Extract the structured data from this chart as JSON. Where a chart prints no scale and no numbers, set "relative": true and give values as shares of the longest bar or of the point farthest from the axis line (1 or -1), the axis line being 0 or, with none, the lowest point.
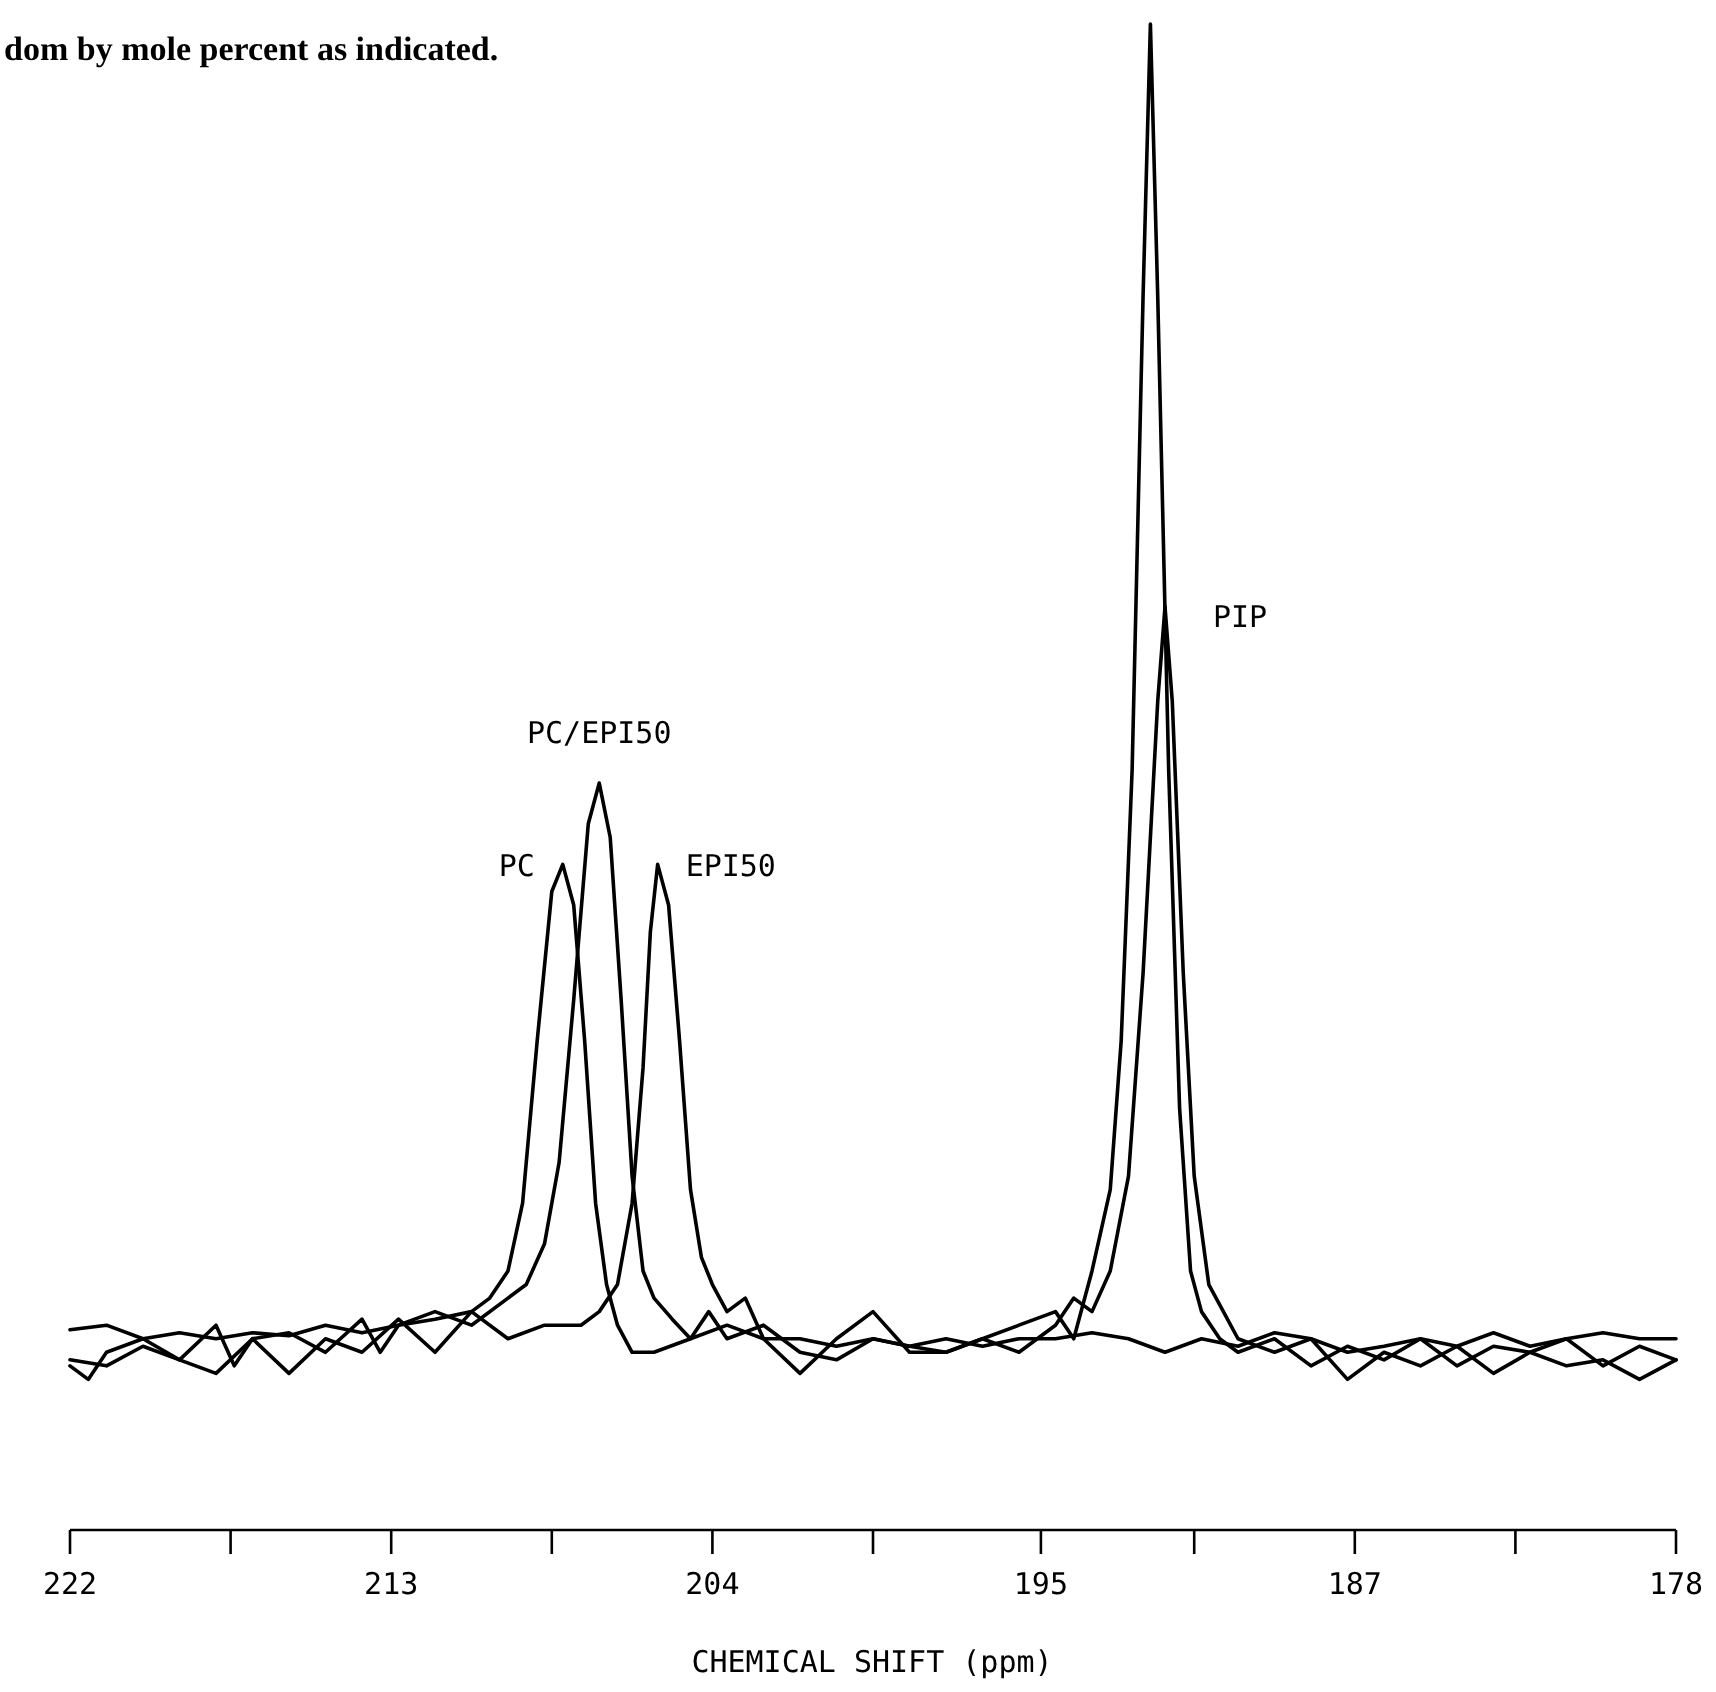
{
  "chart_data": {
    "type": "line",
    "relative": true,
    "xlabel": "CHEMICAL SHIFT (ppm)",
    "annotations": [
      "dom by mole percent as indicated.",
      {
        "text": "PIP",
        "x": 192,
        "y": 0.613
      }
    ],
    "xlim": [
      222,
      178
    ],
    "xticks": [
      222,
      {
        "value": 217.6,
        "label": null
      },
      {
        "value": 213.2,
        "label": "213"
      },
      {
        "value": 208.8,
        "label": null
      },
      {
        "value": 204.4,
        "label": "204"
      },
      {
        "value": 200,
        "label": null
      },
      {
        "value": 195.4,
        "label": "195"
      },
      {
        "value": 191.2,
        "label": null
      },
      {
        "value": 186.8,
        "label": "187"
      },
      {
        "value": 182.4,
        "label": null
      },
      178
    ],
    "marker": "none",
    "line_style": "solid",
    "series": [
      {
        "name": "PC",
        "color": "#000000",
        "x": [
          222,
          221,
          220,
          219,
          218,
          217,
          216,
          215,
          214,
          213,
          212,
          211,
          210.5,
          210,
          209.6,
          209.2,
          208.8,
          208.5,
          208.2,
          207.9,
          207.6,
          207.3,
          207,
          206.6,
          206,
          205,
          204,
          203,
          202,
          201,
          200,
          199,
          198,
          197,
          196,
          195,
          194,
          193,
          192,
          191,
          190,
          189,
          188,
          187,
          186,
          185,
          184,
          183,
          182,
          181,
          180,
          179,
          178
        ],
        "values": [
          0.133,
          0.136,
          0.127,
          0.131,
          0.127,
          0.131,
          0.129,
          0.136,
          0.131,
          0.136,
          0.14,
          0.145,
          0.154,
          0.172,
          0.217,
          0.325,
          0.424,
          0.442,
          0.415,
          0.325,
          0.217,
          0.163,
          0.136,
          0.118,
          0.118,
          0.127,
          0.136,
          0.127,
          0.127,
          0.122,
          0.127,
          0.122,
          0.127,
          0.122,
          0.127,
          0.127,
          0.131,
          0.127,
          0.118,
          0.127,
          0.122,
          0.131,
          0.127,
          0.118,
          0.122,
          0.127,
          0.122,
          0.131,
          0.122,
          0.127,
          0.131,
          0.127,
          0.127
        ]
      },
      {
        "name": "PC/EPI50",
        "color": "#000000",
        "x": [
          222,
          221.5,
          221,
          220,
          219,
          218,
          217.5,
          217,
          216,
          215,
          214,
          213.5,
          213,
          212,
          211,
          210,
          209.5,
          209,
          208.6,
          208.2,
          207.8,
          207.5,
          207.2,
          206.9,
          206.6,
          206.3,
          206,
          205.5,
          205,
          204.5,
          204,
          203,
          202,
          201,
          200,
          199,
          198,
          197,
          196,
          195,
          194.5,
          194,
          193.5,
          193.2,
          192.9,
          192.6,
          192.4,
          192.2,
          191.9,
          191.6,
          191.3,
          191,
          190.5,
          190,
          189,
          188,
          187,
          186,
          185,
          184,
          183,
          182,
          181,
          180,
          179,
          178
        ],
        "values": [
          0.109,
          0.1,
          0.118,
          0.127,
          0.113,
          0.136,
          0.109,
          0.127,
          0.131,
          0.118,
          0.14,
          0.118,
          0.136,
          0.145,
          0.136,
          0.154,
          0.163,
          0.19,
          0.244,
          0.352,
          0.469,
          0.496,
          0.46,
          0.352,
          0.235,
          0.172,
          0.154,
          0.14,
          0.127,
          0.145,
          0.127,
          0.136,
          0.118,
          0.113,
          0.127,
          0.122,
          0.118,
          0.127,
          0.136,
          0.145,
          0.127,
          0.172,
          0.226,
          0.325,
          0.505,
          0.82,
          1,
          0.82,
          0.505,
          0.28,
          0.172,
          0.145,
          0.127,
          0.118,
          0.127,
          0.109,
          0.122,
          0.113,
          0.127,
          0.109,
          0.122,
          0.118,
          0.127,
          0.109,
          0.122,
          0.113
        ]
      },
      {
        "name": "EPI50",
        "color": "#000000",
        "x": [
          222,
          221,
          220,
          219,
          218,
          217,
          216,
          215,
          214,
          213,
          212,
          211,
          210,
          209,
          208,
          207.5,
          207,
          206.6,
          206.3,
          206.1,
          205.9,
          205.6,
          205.3,
          205,
          204.7,
          204.4,
          204,
          203.5,
          203,
          202,
          201,
          200,
          199,
          198,
          197,
          196,
          195,
          194.5,
          194,
          193.5,
          193,
          192.6,
          192.2,
          192,
          191.8,
          191.5,
          191.2,
          190.8,
          190.4,
          190,
          189,
          188,
          187,
          186,
          185,
          184,
          183,
          182,
          181,
          180,
          179,
          178
        ],
        "values": [
          0.113,
          0.109,
          0.122,
          0.113,
          0.104,
          0.127,
          0.104,
          0.127,
          0.118,
          0.14,
          0.118,
          0.145,
          0.127,
          0.136,
          0.136,
          0.145,
          0.163,
          0.217,
          0.307,
          0.397,
          0.442,
          0.415,
          0.325,
          0.226,
          0.181,
          0.163,
          0.145,
          0.154,
          0.127,
          0.104,
          0.127,
          0.145,
          0.118,
          0.118,
          0.127,
          0.118,
          0.136,
          0.154,
          0.145,
          0.172,
          0.235,
          0.37,
          0.55,
          0.613,
          0.55,
          0.37,
          0.235,
          0.163,
          0.145,
          0.127,
          0.118,
          0.127,
          0.1,
          0.118,
          0.109,
          0.122,
          0.104,
          0.118,
          0.109,
          0.113,
          0.1,
          0.113
        ]
      }
    ]
  }
}
